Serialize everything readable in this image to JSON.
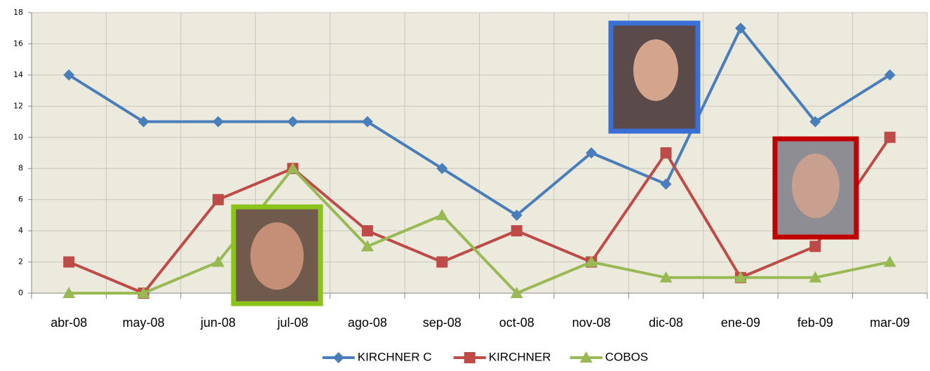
{
  "chart_data": {
    "type": "line",
    "categories": [
      "abr-08",
      "may-08",
      "jun-08",
      "jul-08",
      "ago-08",
      "sep-08",
      "oct-08",
      "nov-08",
      "dic-08",
      "ene-09",
      "feb-09",
      "mar-09"
    ],
    "series": [
      {
        "name": "KIRCHNER C",
        "color": "#4a7ebb",
        "marker": "diamond",
        "values": [
          14,
          11,
          11,
          11,
          11,
          8,
          5,
          9,
          7,
          17,
          11,
          14
        ]
      },
      {
        "name": "KIRCHNER",
        "color": "#be4b48",
        "marker": "square",
        "values": [
          2,
          0,
          6,
          8,
          4,
          2,
          4,
          2,
          9,
          1,
          3,
          10
        ]
      },
      {
        "name": "COBOS",
        "color": "#98b954",
        "marker": "triangle",
        "values": [
          0,
          0,
          2,
          8,
          3,
          5,
          0,
          2,
          1,
          1,
          1,
          2
        ]
      }
    ],
    "ylim": [
      0,
      18
    ],
    "yticks": [
      0,
      2,
      4,
      6,
      8,
      10,
      12,
      14,
      16,
      18
    ],
    "grid": true,
    "legend": "bottom"
  }
}
